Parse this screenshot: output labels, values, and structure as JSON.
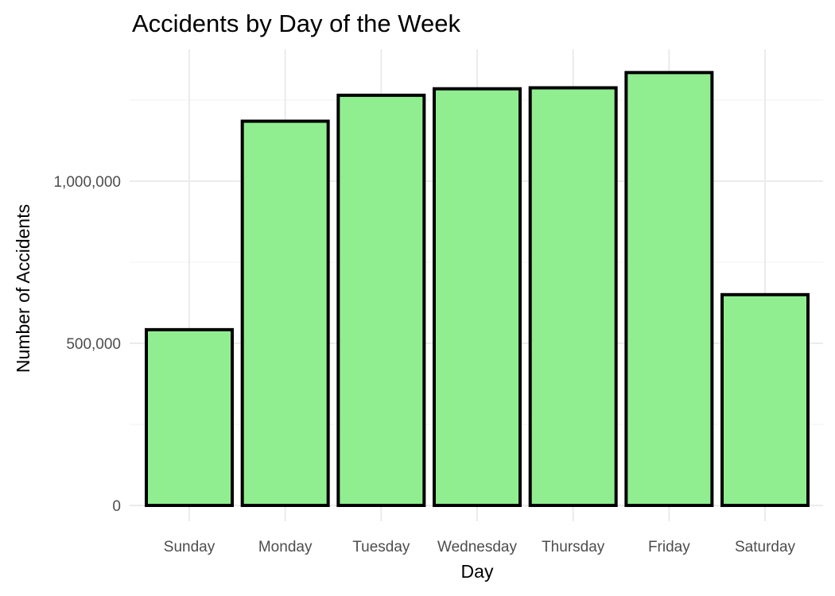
{
  "chart_data": {
    "type": "bar",
    "title": "Accidents by Day of the Week",
    "xlabel": "Day",
    "ylabel": "Number of Accidents",
    "categories": [
      "Sunday",
      "Monday",
      "Tuesday",
      "Wednesday",
      "Thursday",
      "Friday",
      "Saturday"
    ],
    "values": [
      542000,
      1185000,
      1265000,
      1285000,
      1288000,
      1335000,
      650000
    ],
    "ylim": [
      0,
      1400000
    ],
    "yticks": [
      0,
      500000,
      1000000
    ],
    "ytick_labels": [
      "0",
      "500,000",
      "1,000,000"
    ],
    "grid": true,
    "legend": "none",
    "colors": {
      "bar_fill": "#90ee90",
      "bar_outline": "#000000",
      "grid": "#ebebeb"
    }
  }
}
